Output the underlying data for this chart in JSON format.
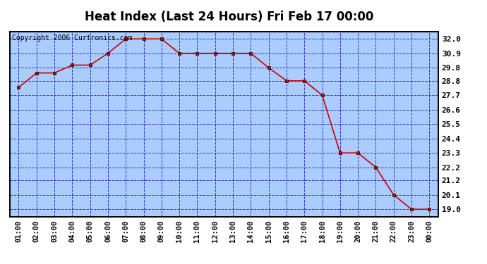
{
  "title": "Heat Index (Last 24 Hours) Fri Feb 17 00:00",
  "copyright_text": "Copyright 2006 Curtronics.com",
  "x_labels": [
    "01:00",
    "02:00",
    "03:00",
    "04:00",
    "05:00",
    "06:00",
    "07:00",
    "08:00",
    "09:00",
    "10:00",
    "11:00",
    "12:00",
    "13:00",
    "14:00",
    "15:00",
    "16:00",
    "17:00",
    "18:00",
    "19:00",
    "20:00",
    "21:00",
    "22:00",
    "23:00",
    "00:00"
  ],
  "y_values": [
    28.3,
    29.4,
    29.4,
    30.0,
    30.0,
    30.9,
    32.0,
    32.0,
    32.0,
    30.9,
    30.9,
    30.9,
    30.9,
    30.9,
    29.8,
    28.8,
    28.8,
    27.7,
    23.3,
    23.3,
    22.2,
    20.1,
    19.0,
    19.0
  ],
  "y_ticks": [
    19.0,
    20.1,
    21.2,
    22.2,
    23.3,
    24.4,
    25.5,
    26.6,
    27.7,
    28.8,
    29.8,
    30.9,
    32.0
  ],
  "y_min": 18.45,
  "y_max": 32.55,
  "line_color": "#cc0000",
  "marker_color": "#cc0000",
  "bg_color": "#aaccff",
  "fig_bg_color": "#ffffff",
  "border_color": "#000000",
  "grid_color": "#2222bb",
  "title_fontsize": 12,
  "copyright_fontsize": 7,
  "tick_fontsize": 8,
  "xlabel_fontsize": 7.5
}
